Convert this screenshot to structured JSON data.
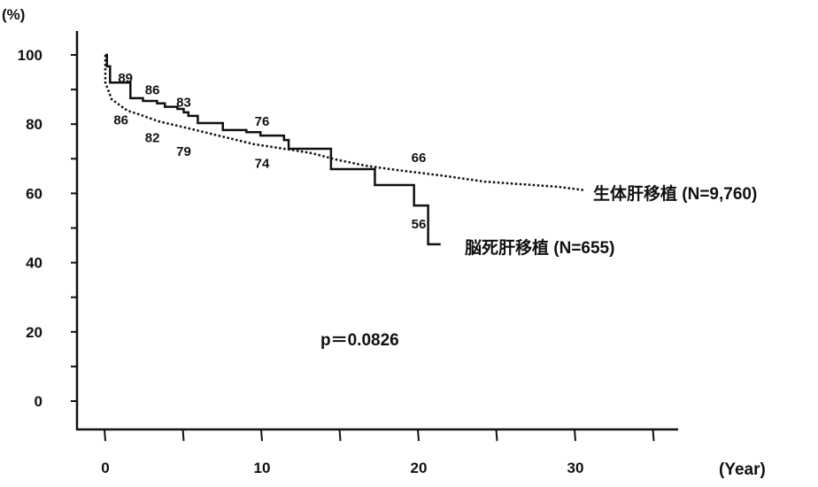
{
  "chart_data": {
    "type": "line",
    "subtype": "kaplan-meier step",
    "title": "",
    "xlabel": "(Year)",
    "ylabel": "(%)",
    "xlim": [
      0,
      35
    ],
    "ylim": [
      0,
      100
    ],
    "x_ticks": [
      0,
      10,
      20,
      30
    ],
    "x_minor_ticks": [
      0,
      5,
      10,
      15,
      20,
      25,
      30,
      35
    ],
    "y_ticks": [
      0,
      20,
      40,
      60,
      80,
      100
    ],
    "grid": false,
    "annotation": "p＝0.0826",
    "series": [
      {
        "name": "生体肝移植 (N=9,760)",
        "style": "dotted",
        "color": "#111111",
        "points": [
          [
            0,
            100
          ],
          [
            0,
            92
          ],
          [
            0.4,
            87.2
          ],
          [
            1.4,
            83.9
          ],
          [
            2.1,
            82.9
          ],
          [
            3.4,
            80.8
          ],
          [
            5.3,
            78.8
          ],
          [
            7.2,
            76.7
          ],
          [
            9.5,
            74.2
          ],
          [
            11.4,
            72.9
          ],
          [
            13.2,
            71.6
          ],
          [
            14.7,
            69.8
          ],
          [
            16.6,
            68.0
          ],
          [
            18.5,
            66.8
          ],
          [
            21.4,
            65.2
          ],
          [
            24.2,
            63.4
          ],
          [
            28.9,
            61.9
          ],
          [
            30.6,
            60.9
          ]
        ],
        "labels": [
          {
            "x": 1,
            "y": 86,
            "text": "86"
          },
          {
            "x": 3,
            "y": 82,
            "text": "82"
          },
          {
            "x": 5,
            "y": 79,
            "text": "79"
          },
          {
            "x": 10,
            "y": 74,
            "text": "74"
          },
          {
            "x": 20,
            "y": 66,
            "text": "66"
          }
        ]
      },
      {
        "name": "脳死肝移植 (N=655)",
        "style": "solid",
        "color": "#111111",
        "steps": [
          [
            0,
            100
          ],
          [
            0.1,
            96.7
          ],
          [
            0.3,
            92
          ],
          [
            1.6,
            87.5
          ],
          [
            2.4,
            86.7
          ],
          [
            3.3,
            86
          ],
          [
            3.8,
            85
          ],
          [
            4.6,
            84.4
          ],
          [
            5.0,
            83.4
          ],
          [
            5.3,
            82.4
          ],
          [
            5.9,
            80.3
          ],
          [
            7.5,
            78.3
          ],
          [
            9.0,
            77.7
          ],
          [
            9.9,
            76.7
          ],
          [
            11.4,
            75.4
          ],
          [
            11.7,
            72.9
          ],
          [
            14.4,
            67
          ],
          [
            17.2,
            62.4
          ],
          [
            19.7,
            56.5
          ],
          [
            20.6,
            45.3
          ],
          [
            21.4,
            45.3
          ]
        ],
        "labels": [
          {
            "x": 1,
            "y": 89,
            "text": "89"
          },
          {
            "x": 3,
            "y": 86,
            "text": "86"
          },
          {
            "x": 5,
            "y": 83,
            "text": "83"
          },
          {
            "x": 10,
            "y": 76,
            "text": "76"
          },
          {
            "x": 20,
            "y": 56,
            "text": "56"
          }
        ]
      }
    ]
  }
}
